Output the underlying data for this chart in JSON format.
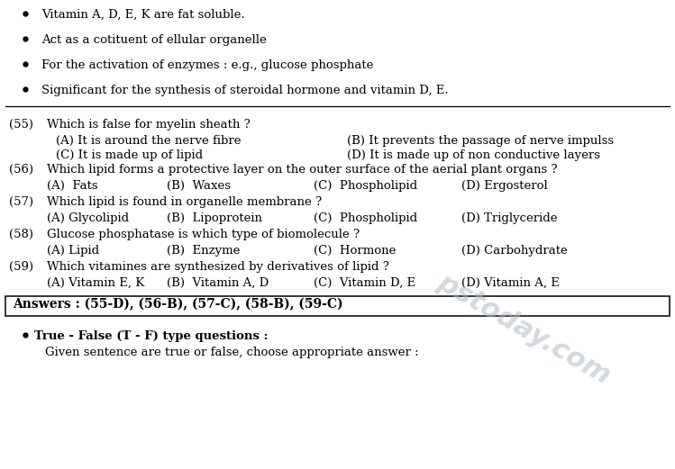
{
  "background_color": "#ffffff",
  "bullet_points": [
    "Vitamin A, D, E, K are fat soluble.",
    "Act as a cotituent of ellular organelle",
    "For the activation of enzymes : e.g., glucose phosphate",
    "Significant for the synthesis of steroidal hormone and vitamin D, E."
  ],
  "questions": [
    {
      "num": "(55)",
      "question": "Which is false for myelin sheath ?",
      "opts_row1": [
        "(A) It is around the nerve fibre",
        "(B) It prevents the passage of nerve impulss"
      ],
      "opts_row2": [
        "(C) It is made up of lipid",
        "(D) It is made up of non conductive layers"
      ],
      "layout": "2col"
    },
    {
      "num": "(56)",
      "question": "Which lipid forms a protective layer on the outer surface of the aerial plant organs ?",
      "opts_row1": [
        "(A)  Fats",
        "(B)  Waxes",
        "(C)  Phospholipid",
        "(D) Ergosterol"
      ],
      "layout": "4col"
    },
    {
      "num": "(57)",
      "question": "Which lipid is found in organelle membrane ?",
      "opts_row1": [
        "(A) Glycolipid",
        "(B)  Lipoprotein",
        "(C)  Phospholipid",
        "(D) Triglyceride"
      ],
      "layout": "4col"
    },
    {
      "num": "(58)",
      "question": "Glucose phosphatase is which type of biomolecule ?",
      "opts_row1": [
        "(A) Lipid",
        "(B)  Enzyme",
        "(C)  Hormone",
        "(D) Carbohydrate"
      ],
      "layout": "4col"
    },
    {
      "num": "(59)",
      "question": "Which vitamines are synthesized by derivatives of lipid ?",
      "opts_row1": [
        "(A) Vitamin E, K",
        "(B)  Vitamin A, D",
        "(C)  Vitamin D, E",
        "(D) Vitamin A, E"
      ],
      "layout": "4col"
    }
  ],
  "answers_line": "Answers : (55-D), (56-B), (57-C), (58-B), (59-C)",
  "bottom_bullet_header": "True - False (T - F) type questions :",
  "bottom_text": "Given sentence are true or false, choose appropriate answer :",
  "watermark": "pstoday.com",
  "fig_width": 7.49,
  "fig_height": 5.21,
  "dpi": 100
}
